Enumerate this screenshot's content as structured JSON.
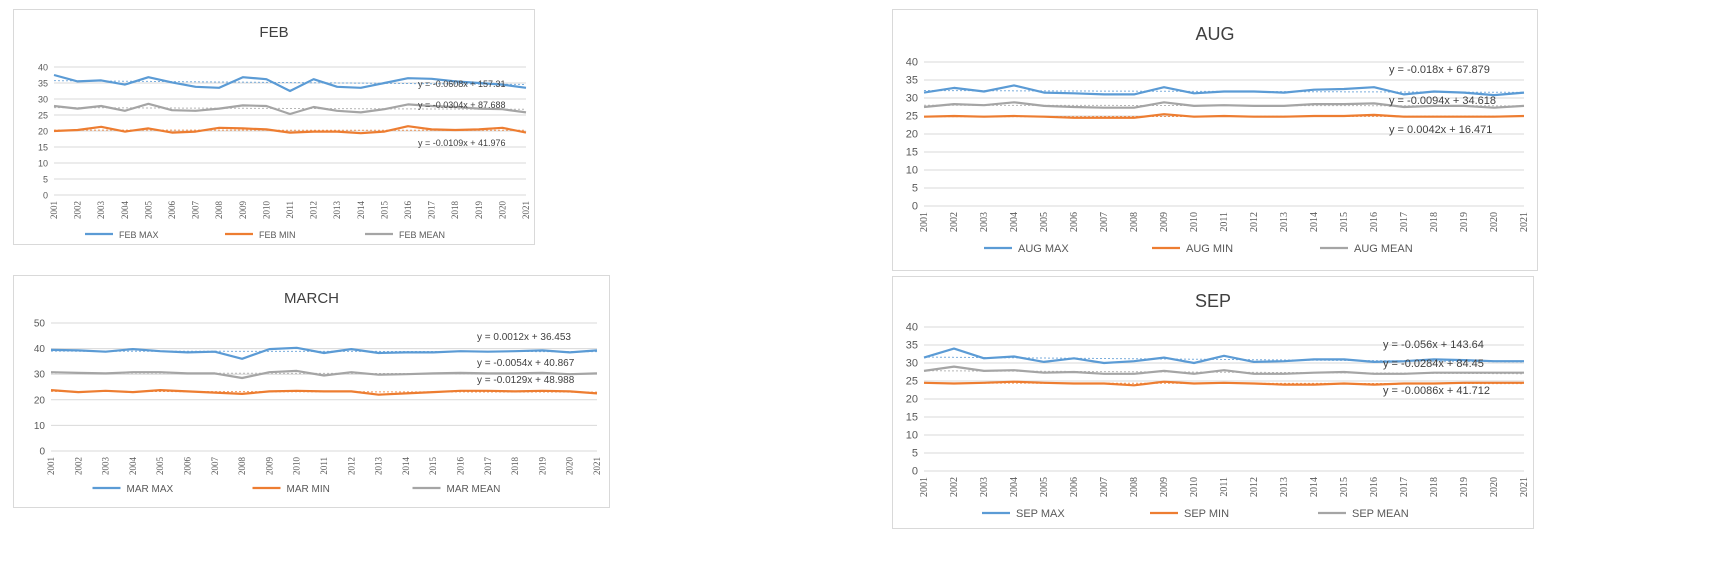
{
  "colors": {
    "max": "#5b9bd5",
    "min": "#ed7d31",
    "mean": "#a5a5a5",
    "grid": "#d9d9d9",
    "text": "#595959"
  },
  "chart_data": [
    {
      "type": "line",
      "title": "FEB",
      "x": [
        "2001",
        "2002",
        "2003",
        "2004",
        "2005",
        "2006",
        "2007",
        "2008",
        "2009",
        "2010",
        "2011",
        "2012",
        "2013",
        "2014",
        "2015",
        "2016",
        "2017",
        "2018",
        "2019",
        "2020",
        "2021"
      ],
      "ylim": [
        0,
        40
      ],
      "yticks": [
        0,
        5,
        10,
        15,
        20,
        25,
        30,
        35,
        40
      ],
      "grid": true,
      "legend": "bottom",
      "series": [
        {
          "name": "FEB MAX",
          "values": [
            37.5,
            35.5,
            35.8,
            34.5,
            36.8,
            35.2,
            33.8,
            33.5,
            36.8,
            36.2,
            32.5,
            36.2,
            33.8,
            33.5,
            35.0,
            36.5,
            36.3,
            35.5,
            35.0,
            34.5,
            33.5
          ]
        },
        {
          "name": "FEB MIN",
          "values": [
            20.0,
            20.3,
            21.3,
            19.8,
            20.8,
            19.5,
            19.8,
            21.0,
            20.8,
            20.5,
            19.5,
            19.8,
            19.8,
            19.3,
            19.8,
            21.5,
            20.5,
            20.3,
            20.5,
            21.0,
            19.5
          ]
        },
        {
          "name": "FEB MEAN",
          "values": [
            27.8,
            27.0,
            27.8,
            26.3,
            28.5,
            26.5,
            26.3,
            27.0,
            28.0,
            27.8,
            25.3,
            27.5,
            26.3,
            25.8,
            26.8,
            28.3,
            27.8,
            27.5,
            27.0,
            26.8,
            25.8
          ]
        }
      ],
      "annotations": [
        "y = -0.0608x + 157.31",
        "y = -0.0304x + 87.688",
        "y = -0.0109x + 41.976"
      ]
    },
    {
      "type": "line",
      "title": "MARCH",
      "x": [
        "2001",
        "2002",
        "2003",
        "2004",
        "2005",
        "2006",
        "2007",
        "2008",
        "2009",
        "2010",
        "2011",
        "2012",
        "2013",
        "2014",
        "2015",
        "2016",
        "2017",
        "2018",
        "2019",
        "2020",
        "2021"
      ],
      "ylim": [
        0,
        50
      ],
      "yticks": [
        0,
        10,
        20,
        30,
        40,
        50
      ],
      "grid": true,
      "legend": "bottom",
      "series": [
        {
          "name": "MAR MAX",
          "values": [
            39.5,
            39.3,
            38.8,
            39.8,
            39.0,
            38.5,
            38.8,
            36.0,
            39.8,
            40.3,
            38.3,
            39.8,
            38.3,
            38.5,
            38.5,
            39.0,
            38.8,
            39.0,
            39.3,
            38.5,
            39.3
          ]
        },
        {
          "name": "MAR MIN",
          "values": [
            23.8,
            23.0,
            23.5,
            23.0,
            23.8,
            23.3,
            22.8,
            22.3,
            23.3,
            23.5,
            23.3,
            23.3,
            22.0,
            22.5,
            23.0,
            23.5,
            23.5,
            23.3,
            23.5,
            23.3,
            22.5
          ]
        },
        {
          "name": "MAR MEAN",
          "values": [
            30.8,
            30.5,
            30.3,
            30.8,
            30.8,
            30.3,
            30.3,
            28.5,
            30.8,
            31.3,
            29.5,
            30.8,
            29.8,
            30.0,
            30.3,
            30.5,
            30.3,
            30.3,
            30.5,
            30.0,
            30.3
          ]
        }
      ],
      "annotations": [
        "y = 0.0012x + 36.453",
        "y = -0.0054x + 40.867",
        "y = -0.0129x + 48.988"
      ]
    },
    {
      "type": "line",
      "title": "AUG",
      "x": [
        "2001",
        "2002",
        "2003",
        "2004",
        "2005",
        "2006",
        "2007",
        "2008",
        "2009",
        "2010",
        "2011",
        "2012",
        "2013",
        "2014",
        "2015",
        "2016",
        "2017",
        "2018",
        "2019",
        "2020",
        "2021"
      ],
      "ylim": [
        0,
        40
      ],
      "yticks": [
        0,
        5,
        10,
        15,
        20,
        25,
        30,
        35,
        40
      ],
      "grid": true,
      "legend": "bottom",
      "series": [
        {
          "name": "AUG MAX",
          "values": [
            31.5,
            32.8,
            31.8,
            33.5,
            31.5,
            31.3,
            31.0,
            31.0,
            33.0,
            31.3,
            31.8,
            31.8,
            31.5,
            32.3,
            32.5,
            33.0,
            31.0,
            31.8,
            31.5,
            30.8,
            31.5
          ]
        },
        {
          "name": "AUG MIN",
          "values": [
            24.8,
            25.0,
            24.8,
            25.0,
            24.8,
            24.5,
            24.5,
            24.5,
            25.5,
            24.8,
            25.0,
            24.8,
            24.8,
            25.0,
            25.0,
            25.3,
            24.8,
            24.8,
            24.8,
            24.8,
            25.0
          ]
        },
        {
          "name": "AUG MEAN",
          "values": [
            27.5,
            28.3,
            28.0,
            28.8,
            27.8,
            27.5,
            27.3,
            27.3,
            28.8,
            27.8,
            28.0,
            27.8,
            27.8,
            28.3,
            28.3,
            28.5,
            27.5,
            27.8,
            27.8,
            27.3,
            27.8
          ]
        }
      ],
      "annotations": [
        "y = -0.018x + 67.879",
        "y = -0.0094x + 34.618",
        "y = 0.0042x + 16.471"
      ]
    },
    {
      "type": "line",
      "title": "SEP",
      "x": [
        "2001",
        "2002",
        "2003",
        "2004",
        "2005",
        "2006",
        "2007",
        "2008",
        "2009",
        "2010",
        "2011",
        "2012",
        "2013",
        "2014",
        "2015",
        "2016",
        "2017",
        "2018",
        "2019",
        "2020",
        "2021"
      ],
      "ylim": [
        0,
        40
      ],
      "yticks": [
        0,
        5,
        10,
        15,
        20,
        25,
        30,
        35,
        40
      ],
      "grid": true,
      "legend": "bottom",
      "series": [
        {
          "name": "SEP MAX",
          "values": [
            31.5,
            34.0,
            31.3,
            31.8,
            30.3,
            31.3,
            30.0,
            30.5,
            31.5,
            30.0,
            32.0,
            30.3,
            30.5,
            31.0,
            31.0,
            30.3,
            30.5,
            31.0,
            30.8,
            30.5,
            30.5
          ]
        },
        {
          "name": "SEP MIN",
          "values": [
            24.5,
            24.3,
            24.5,
            24.8,
            24.5,
            24.3,
            24.3,
            23.8,
            24.8,
            24.3,
            24.5,
            24.3,
            24.0,
            24.0,
            24.3,
            24.0,
            24.3,
            24.3,
            24.5,
            24.5,
            24.5
          ]
        },
        {
          "name": "SEP MEAN",
          "values": [
            27.8,
            29.0,
            27.8,
            28.0,
            27.3,
            27.5,
            27.0,
            27.0,
            27.8,
            27.0,
            28.0,
            27.0,
            27.0,
            27.3,
            27.5,
            27.0,
            27.0,
            27.3,
            27.3,
            27.3,
            27.3
          ]
        }
      ],
      "annotations": [
        "y = -0.056x + 143.64",
        "y = -0.0284x + 84.45",
        "y = -0.0086x + 41.712"
      ]
    }
  ]
}
